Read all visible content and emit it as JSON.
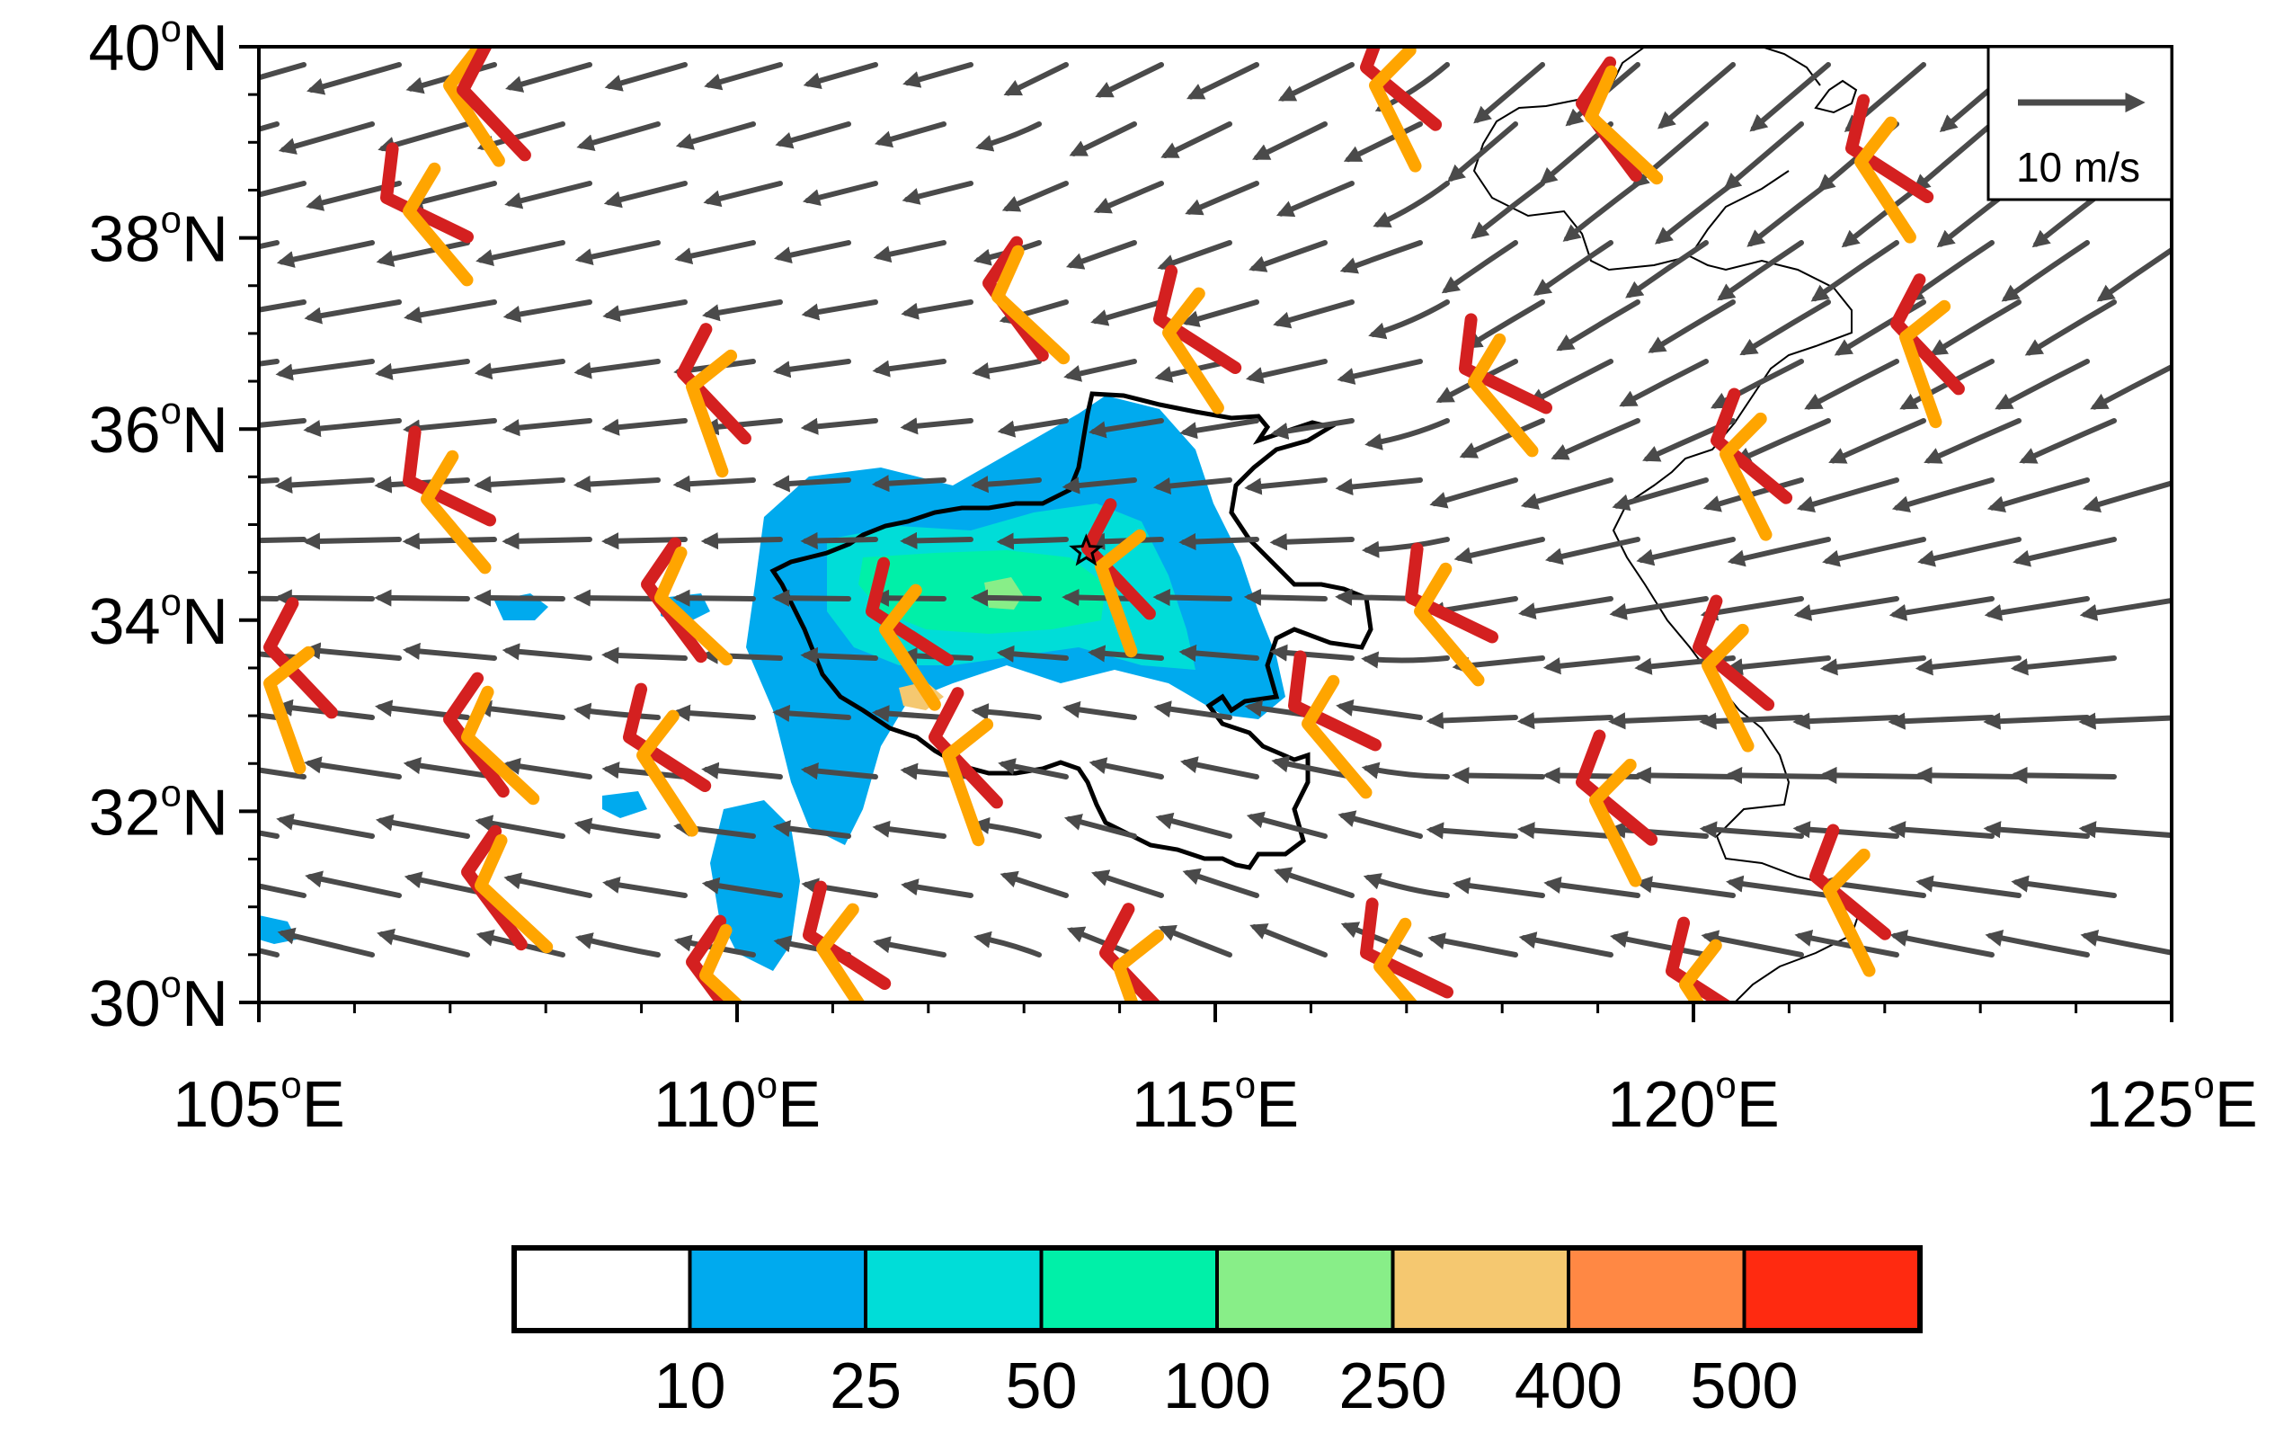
{
  "map": {
    "lon_range": [
      105,
      125
    ],
    "lat_range": [
      30,
      40
    ],
    "x_ticks": [
      {
        "value": 105,
        "label": "105",
        "suffix": "E"
      },
      {
        "value": 110,
        "label": "110",
        "suffix": "E"
      },
      {
        "value": 115,
        "label": "115",
        "suffix": "E"
      },
      {
        "value": 120,
        "label": "120",
        "suffix": "E"
      },
      {
        "value": 125,
        "label": "125",
        "suffix": "E"
      }
    ],
    "y_ticks": [
      {
        "value": 30,
        "label": "30",
        "suffix": "N"
      },
      {
        "value": 32,
        "label": "32",
        "suffix": "N"
      },
      {
        "value": 34,
        "label": "34",
        "suffix": "N"
      },
      {
        "value": 36,
        "label": "36",
        "suffix": "N"
      },
      {
        "value": 38,
        "label": "38",
        "suffix": "N"
      },
      {
        "value": 40,
        "label": "40",
        "suffix": "N"
      }
    ],
    "reference_vector": {
      "label": "10 m/s",
      "magnitude": 10
    },
    "station_marker": {
      "lon": 113.65,
      "lat": 34.72,
      "symbol": "star"
    },
    "wind_barb_colors": {
      "lower_level": "#ffa500",
      "upper_level": "#d42020"
    },
    "streamline_color": "#4a4a4a"
  },
  "colorbar": {
    "levels": [
      "10",
      "25",
      "50",
      "100",
      "250",
      "400",
      "500"
    ],
    "colors": [
      "#ffffff",
      "#00aaee",
      "#00ddd8",
      "#00f0a8",
      "#88ee88",
      "#f5c870",
      "#ff8844",
      "#ff2a10"
    ]
  }
}
